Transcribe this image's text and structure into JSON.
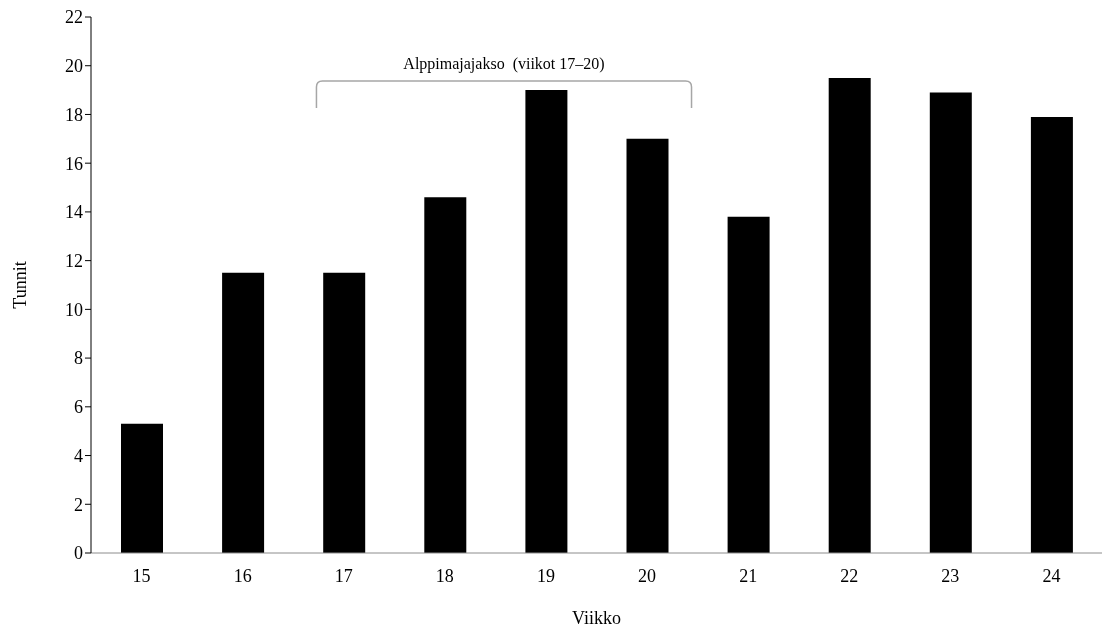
{
  "chart_data": {
    "type": "bar",
    "xlabel": "Viikko",
    "ylabel": "Tunnit",
    "categories": [
      "15",
      "16",
      "17",
      "18",
      "19",
      "20",
      "21",
      "22",
      "23",
      "24"
    ],
    "values": [
      5.3,
      11.5,
      11.5,
      14.6,
      19.0,
      17.0,
      13.8,
      19.5,
      18.9,
      17.9
    ],
    "color": "#000000",
    "ylim": [
      0,
      22
    ],
    "yticks": [
      0,
      2,
      4,
      6,
      8,
      10,
      12,
      14,
      16,
      18,
      20,
      22
    ],
    "annotations": [
      "Alppimajajakso  (viikot 17–20)"
    ],
    "grid": false,
    "legend": false
  }
}
